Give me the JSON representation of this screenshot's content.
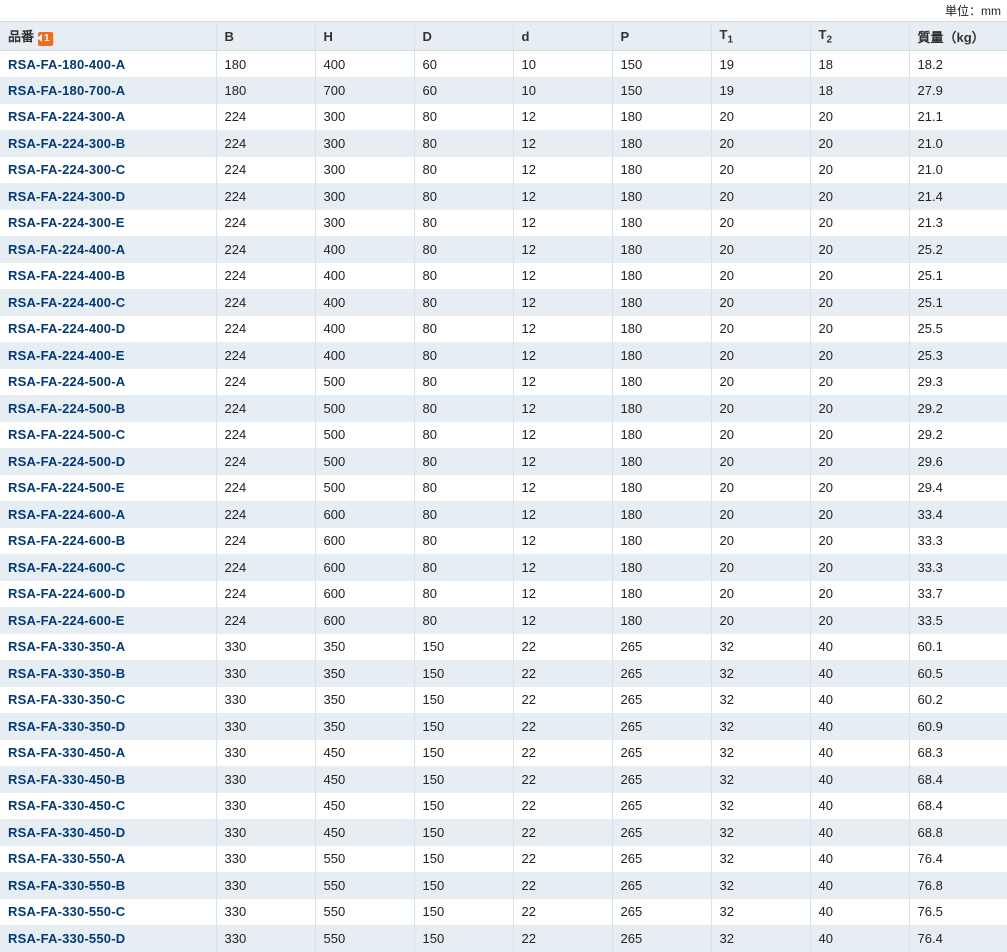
{
  "unit_label": "単位：mm",
  "sort_badge": "1",
  "columns": [
    {
      "key": "part",
      "label": "品番",
      "has_badge": true
    },
    {
      "key": "B",
      "label": "B"
    },
    {
      "key": "H",
      "label": "H"
    },
    {
      "key": "D",
      "label": "D"
    },
    {
      "key": "d",
      "label": "d"
    },
    {
      "key": "P",
      "label": "P"
    },
    {
      "key": "T1",
      "label": "T",
      "sub": "1"
    },
    {
      "key": "T2",
      "label": "T",
      "sub": "2"
    },
    {
      "key": "mass",
      "label": "質量（kg）"
    }
  ],
  "rows": [
    [
      "RSA-FA-180-400-A",
      "180",
      "400",
      " 60",
      "10",
      "150",
      "19",
      "18",
      "18.2"
    ],
    [
      "RSA-FA-180-700-A",
      "180",
      "700",
      " 60",
      "10",
      "150",
      "19",
      "18",
      "27.9"
    ],
    [
      "RSA-FA-224-300-A",
      "224",
      "300",
      " 80",
      "12",
      "180",
      "20",
      "20",
      "21.1"
    ],
    [
      "RSA-FA-224-300-B",
      "224",
      "300",
      " 80",
      "12",
      "180",
      "20",
      "20",
      "21.0"
    ],
    [
      "RSA-FA-224-300-C",
      "224",
      "300",
      " 80",
      "12",
      "180",
      "20",
      "20",
      "21.0"
    ],
    [
      "RSA-FA-224-300-D",
      "224",
      "300",
      " 80",
      "12",
      "180",
      "20",
      "20",
      "21.4"
    ],
    [
      "RSA-FA-224-300-E",
      "224",
      "300",
      " 80",
      "12",
      "180",
      "20",
      "20",
      "21.3"
    ],
    [
      "RSA-FA-224-400-A",
      "224",
      "400",
      " 80",
      "12",
      "180",
      "20",
      "20",
      "25.2"
    ],
    [
      "RSA-FA-224-400-B",
      "224",
      "400",
      " 80",
      "12",
      "180",
      "20",
      "20",
      "25.1"
    ],
    [
      "RSA-FA-224-400-C",
      "224",
      "400",
      " 80",
      "12",
      "180",
      "20",
      "20",
      "25.1"
    ],
    [
      "RSA-FA-224-400-D",
      "224",
      "400",
      " 80",
      "12",
      "180",
      "20",
      "20",
      "25.5"
    ],
    [
      "RSA-FA-224-400-E",
      "224",
      "400",
      " 80",
      "12",
      "180",
      "20",
      "20",
      "25.3"
    ],
    [
      "RSA-FA-224-500-A",
      "224",
      "500",
      " 80",
      "12",
      "180",
      "20",
      "20",
      "29.3"
    ],
    [
      "RSA-FA-224-500-B",
      "224",
      "500",
      " 80",
      "12",
      "180",
      "20",
      "20",
      "29.2"
    ],
    [
      "RSA-FA-224-500-C",
      "224",
      "500",
      " 80",
      "12",
      "180",
      "20",
      "20",
      "29.2"
    ],
    [
      "RSA-FA-224-500-D",
      "224",
      "500",
      " 80",
      "12",
      "180",
      "20",
      "20",
      "29.6"
    ],
    [
      "RSA-FA-224-500-E",
      "224",
      "500",
      " 80",
      "12",
      "180",
      "20",
      "20",
      "29.4"
    ],
    [
      "RSA-FA-224-600-A",
      "224",
      "600",
      " 80",
      "12",
      "180",
      "20",
      "20",
      "33.4"
    ],
    [
      "RSA-FA-224-600-B",
      "224",
      "600",
      " 80",
      "12",
      "180",
      "20",
      "20",
      "33.3"
    ],
    [
      "RSA-FA-224-600-C",
      "224",
      "600",
      " 80",
      "12",
      "180",
      "20",
      "20",
      "33.3"
    ],
    [
      "RSA-FA-224-600-D",
      "224",
      "600",
      " 80",
      "12",
      "180",
      "20",
      "20",
      "33.7"
    ],
    [
      "RSA-FA-224-600-E",
      "224",
      "600",
      " 80",
      "12",
      "180",
      "20",
      "20",
      "33.5"
    ],
    [
      "RSA-FA-330-350-A",
      "330",
      "350",
      "150",
      "22",
      "265",
      "32",
      "40",
      "60.1"
    ],
    [
      "RSA-FA-330-350-B",
      "330",
      "350",
      "150",
      "22",
      "265",
      "32",
      "40",
      "60.5"
    ],
    [
      "RSA-FA-330-350-C",
      "330",
      "350",
      "150",
      "22",
      "265",
      "32",
      "40",
      "60.2"
    ],
    [
      "RSA-FA-330-350-D",
      "330",
      "350",
      "150",
      "22",
      "265",
      "32",
      "40",
      "60.9"
    ],
    [
      "RSA-FA-330-450-A",
      "330",
      "450",
      "150",
      "22",
      "265",
      "32",
      "40",
      "68.3"
    ],
    [
      "RSA-FA-330-450-B",
      "330",
      "450",
      "150",
      "22",
      "265",
      "32",
      "40",
      "68.4"
    ],
    [
      "RSA-FA-330-450-C",
      "330",
      "450",
      "150",
      "22",
      "265",
      "32",
      "40",
      "68.4"
    ],
    [
      "RSA-FA-330-450-D",
      "330",
      "450",
      "150",
      "22",
      "265",
      "32",
      "40",
      "68.8"
    ],
    [
      "RSA-FA-330-550-A",
      "330",
      "550",
      "150",
      "22",
      "265",
      "32",
      "40",
      "76.4"
    ],
    [
      "RSA-FA-330-550-B",
      "330",
      "550",
      "150",
      "22",
      "265",
      "32",
      "40",
      "76.8"
    ],
    [
      "RSA-FA-330-550-C",
      "330",
      "550",
      "150",
      "22",
      "265",
      "32",
      "40",
      "76.5"
    ],
    [
      "RSA-FA-330-550-D",
      "330",
      "550",
      "150",
      "22",
      "265",
      "32",
      "40",
      "76.4"
    ]
  ]
}
